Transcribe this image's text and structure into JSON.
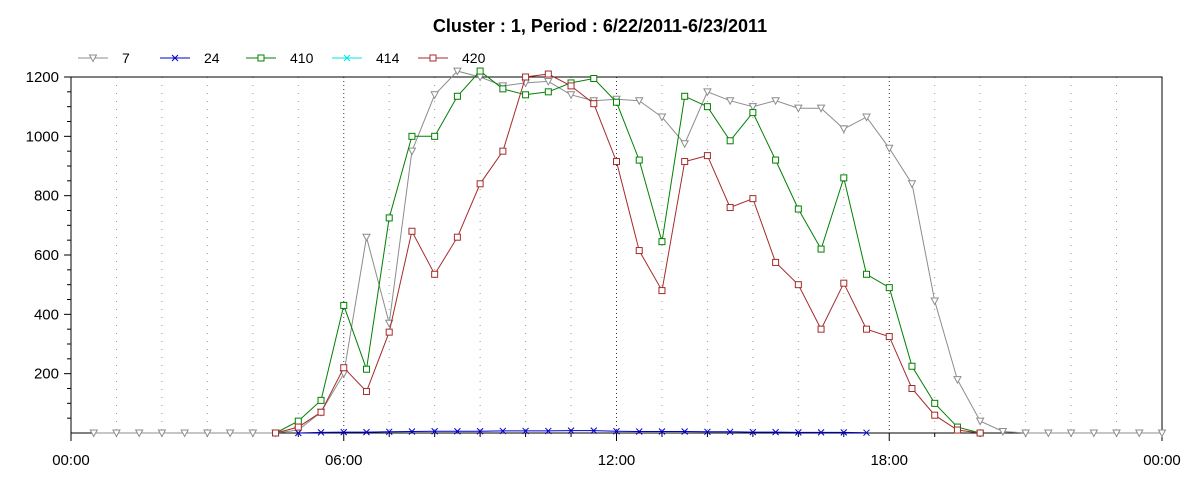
{
  "chart_data": {
    "type": "line",
    "title": "Cluster : 1, Period : 6/22/2011-6/23/2011",
    "xlabel": "",
    "ylabel": "",
    "x_unit": "hours",
    "xlim": [
      0,
      24
    ],
    "ylim": [
      0,
      1200
    ],
    "grid": "vertical dotted",
    "legend": "top-left",
    "yticks": [
      200,
      400,
      600,
      800,
      1000,
      1200
    ],
    "xticks": [
      {
        "value": 0,
        "label": "00:00"
      },
      {
        "value": 6,
        "label": "06:00"
      },
      {
        "value": 12,
        "label": "12:00"
      },
      {
        "value": 18,
        "label": "18:00"
      },
      {
        "value": 24,
        "label": "00:00"
      }
    ],
    "series": [
      {
        "name": "7",
        "color": "#8c8c8c",
        "marker": "triangle-down",
        "points": [
          [
            0.5,
            0
          ],
          [
            1,
            0
          ],
          [
            1.5,
            0
          ],
          [
            2,
            0
          ],
          [
            2.5,
            0
          ],
          [
            3,
            0
          ],
          [
            3.5,
            0
          ],
          [
            4,
            0
          ],
          [
            4.5,
            0
          ],
          [
            5,
            10
          ],
          [
            5.5,
            70
          ],
          [
            6,
            200
          ],
          [
            6.5,
            660
          ],
          [
            7,
            370
          ],
          [
            7.5,
            950
          ],
          [
            8,
            1140
          ],
          [
            8.5,
            1220
          ],
          [
            9,
            1200
          ],
          [
            9.5,
            1170
          ],
          [
            10,
            1180
          ],
          [
            10.5,
            1185
          ],
          [
            11,
            1140
          ],
          [
            11.5,
            1120
          ],
          [
            12,
            1125
          ],
          [
            12.5,
            1120
          ],
          [
            13,
            1065
          ],
          [
            13.5,
            975
          ],
          [
            14,
            1150
          ],
          [
            14.5,
            1120
          ],
          [
            15,
            1100
          ],
          [
            15.5,
            1120
          ],
          [
            16,
            1095
          ],
          [
            16.5,
            1095
          ],
          [
            17,
            1025
          ],
          [
            17.5,
            1065
          ],
          [
            18,
            960
          ],
          [
            18.5,
            840
          ],
          [
            19,
            445
          ],
          [
            19.5,
            180
          ],
          [
            20,
            40
          ],
          [
            20.5,
            5
          ],
          [
            21,
            0
          ],
          [
            21.5,
            0
          ],
          [
            22,
            0
          ],
          [
            22.5,
            0
          ],
          [
            23,
            0
          ],
          [
            23.5,
            0
          ],
          [
            24,
            0
          ]
        ]
      },
      {
        "name": "24",
        "color": "#0000cc",
        "marker": "x",
        "points": [
          [
            5,
            0
          ],
          [
            5.5,
            2
          ],
          [
            6,
            3
          ],
          [
            6.5,
            3
          ],
          [
            7,
            4
          ],
          [
            7.5,
            5
          ],
          [
            8,
            6
          ],
          [
            8.5,
            6
          ],
          [
            9,
            6
          ],
          [
            9.5,
            7
          ],
          [
            10,
            7
          ],
          [
            10.5,
            7
          ],
          [
            11,
            8
          ],
          [
            11.5,
            8
          ],
          [
            12,
            6
          ],
          [
            12.5,
            5
          ],
          [
            13,
            5
          ],
          [
            13.5,
            5
          ],
          [
            14,
            4
          ],
          [
            14.5,
            4
          ],
          [
            15,
            3
          ],
          [
            15.5,
            3
          ],
          [
            16,
            2
          ],
          [
            16.5,
            2
          ],
          [
            17,
            2
          ],
          [
            17.5,
            1
          ]
        ]
      },
      {
        "name": "410",
        "color": "#008000",
        "marker": "square",
        "points": [
          [
            4.5,
            0
          ],
          [
            5,
            40
          ],
          [
            5.5,
            110
          ],
          [
            6,
            430
          ],
          [
            6.5,
            215
          ],
          [
            7,
            725
          ],
          [
            7.5,
            1000
          ],
          [
            8,
            1000
          ],
          [
            8.5,
            1135
          ],
          [
            9,
            1220
          ],
          [
            9.5,
            1160
          ],
          [
            10,
            1140
          ],
          [
            10.5,
            1150
          ],
          [
            11,
            1180
          ],
          [
            11.5,
            1195
          ],
          [
            12,
            1115
          ],
          [
            12.5,
            920
          ],
          [
            13,
            645
          ],
          [
            13.5,
            1135
          ],
          [
            14,
            1100
          ],
          [
            14.5,
            985
          ],
          [
            15,
            1080
          ],
          [
            15.5,
            920
          ],
          [
            16,
            755
          ],
          [
            16.5,
            620
          ],
          [
            17,
            860
          ],
          [
            17.5,
            535
          ],
          [
            18,
            490
          ],
          [
            18.5,
            225
          ],
          [
            19,
            100
          ],
          [
            19.5,
            20
          ],
          [
            20,
            0
          ]
        ]
      },
      {
        "name": "414",
        "color": "#00e6e6",
        "marker": "x",
        "points": []
      },
      {
        "name": "420",
        "color": "#a52a2a",
        "marker": "square",
        "points": [
          [
            4.5,
            0
          ],
          [
            5,
            20
          ],
          [
            5.5,
            70
          ],
          [
            6,
            220
          ],
          [
            6.5,
            140
          ],
          [
            7,
            340
          ],
          [
            7.5,
            680
          ],
          [
            8,
            535
          ],
          [
            8.5,
            660
          ],
          [
            9,
            840
          ],
          [
            9.5,
            950
          ],
          [
            10,
            1200
          ],
          [
            10.5,
            1210
          ],
          [
            11,
            1170
          ],
          [
            11.5,
            1110
          ],
          [
            12,
            915
          ],
          [
            12.5,
            615
          ],
          [
            13,
            480
          ],
          [
            13.5,
            915
          ],
          [
            14,
            935
          ],
          [
            14.5,
            760
          ],
          [
            15,
            790
          ],
          [
            15.5,
            575
          ],
          [
            16,
            500
          ],
          [
            16.5,
            350
          ],
          [
            17,
            505
          ],
          [
            17.5,
            350
          ],
          [
            18,
            325
          ],
          [
            18.5,
            150
          ],
          [
            19,
            60
          ],
          [
            19.5,
            10
          ],
          [
            20,
            0
          ]
        ]
      }
    ]
  }
}
